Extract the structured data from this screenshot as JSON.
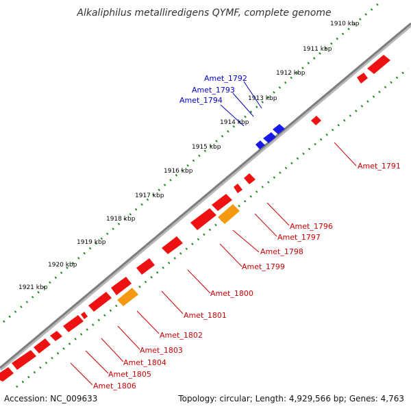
{
  "title": "Alkaliphilus metalliredigens QYMF, complete genome",
  "footer": {
    "accession": "Accession: NC_009633",
    "summary": "Topology: circular; Length: 4,929,566 bp; Genes: 4,763"
  },
  "colors": {
    "backbone": "#8a8a8a",
    "ruler": "#1a8a1a",
    "gene_red": "#ee1111",
    "gene_blue": "#1a1ae6",
    "gene_orange": "#f59a10",
    "label_red": "#cc0000",
    "label_blue": "#0000cc"
  },
  "kbp_ticks": [
    "1910 kbp",
    "1911 kbp",
    "1912 kbp",
    "1913 kbp",
    "1914 kbp",
    "1915 kbp",
    "1916 kbp",
    "1917 kbp",
    "1918 kbp",
    "1919 kbp",
    "1920 kbp",
    "1921 kbp"
  ],
  "gene_labels": [
    {
      "text": "Amet_1791",
      "color": "red"
    },
    {
      "text": "Amet_1792",
      "color": "blue"
    },
    {
      "text": "Amet_1793",
      "color": "blue"
    },
    {
      "text": "Amet_1794",
      "color": "blue"
    },
    {
      "text": "Amet_1796",
      "color": "red"
    },
    {
      "text": "Amet_1797",
      "color": "red"
    },
    {
      "text": "Amet_1798",
      "color": "red"
    },
    {
      "text": "Amet_1799",
      "color": "red"
    },
    {
      "text": "Amet_1800",
      "color": "red"
    },
    {
      "text": "Amet_1801",
      "color": "red"
    },
    {
      "text": "Amet_1802",
      "color": "red"
    },
    {
      "text": "Amet_1803",
      "color": "red"
    },
    {
      "text": "Amet_1804",
      "color": "red"
    },
    {
      "text": "Amet_1805",
      "color": "red"
    },
    {
      "text": "Amet_1806",
      "color": "red"
    }
  ]
}
